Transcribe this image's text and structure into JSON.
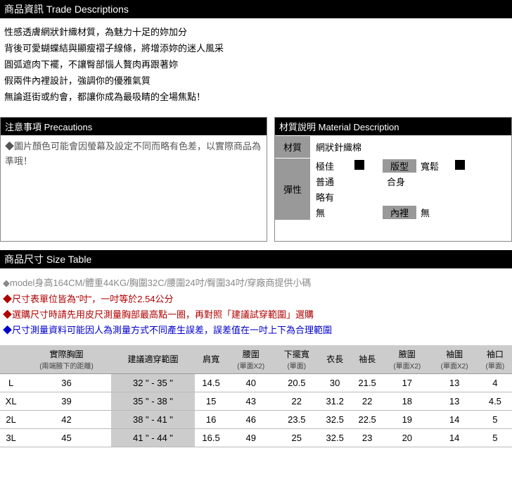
{
  "trade": {
    "header": "商品資訊 Trade Descriptions",
    "lines": [
      "性感透膚網狀針織材質，為魅力十足的妳加分",
      "背後可愛蝴蝶結與顯瘦褶子線條，將增添妳的迷人風采",
      "圓弧遮肉下襬，不讓臀部惱人贅肉再跟著妳",
      "假兩件內裡設計，強調你的優雅氣質",
      "無論逛街或約會，都讓你成為最吸睛的全場焦點！"
    ]
  },
  "precautions": {
    "header": "注意事項 Precautions",
    "body": "◆圖片顏色可能會因螢幕及設定不同而略有色差，以實際商品為準哦！"
  },
  "material": {
    "header": "材質說明 Material Description",
    "label_material": "材質",
    "value_material": "網狀針織棉",
    "label_elastic": "彈性",
    "elastic_options": [
      "極佳",
      "普通",
      "略有",
      "無"
    ],
    "elastic_selected_index": 0,
    "label_fit": "版型",
    "fit_options": [
      "寬鬆",
      "合身"
    ],
    "fit_selected_index": 0,
    "label_lining": "內裡",
    "lining_value": "無"
  },
  "size": {
    "header": "商品尺寸 Size Table",
    "notes": [
      {
        "cls": "note-gray",
        "text": "◆model身高164CM/體重44KG/胸圍32C/腰圍24吋/臀圍34吋/穿廠商提供小碼"
      },
      {
        "cls": "note-red",
        "text": "◆尺寸表單位皆為\"吋\"，一吋等於2.54公分"
      },
      {
        "cls": "note-red",
        "text": "◆選購尺寸時請先用皮尺測量胸部最高點一圈，再對照「建議試穿範圍」選購"
      },
      {
        "cls": "note-blue",
        "text": "◆尺寸測量資料可能因人為測量方式不同產生誤差，誤差值在一吋上下為合理範圍"
      }
    ],
    "columns": [
      {
        "main": "",
        "sub": ""
      },
      {
        "main": "實際胸圍",
        "sub": "(兩端腋下的距離)"
      },
      {
        "main": "建議適穿範圍",
        "sub": ""
      },
      {
        "main": "肩寬",
        "sub": ""
      },
      {
        "main": "腰圍",
        "sub": "(單面X2)"
      },
      {
        "main": "下擺寬",
        "sub": "(單面)"
      },
      {
        "main": "衣長",
        "sub": ""
      },
      {
        "main": "袖長",
        "sub": ""
      },
      {
        "main": "腋圍",
        "sub": "(單面X2)"
      },
      {
        "main": "袖圍",
        "sub": "(單面X2)"
      },
      {
        "main": "袖口",
        "sub": "(單面)"
      }
    ],
    "rows": [
      {
        "label": "L",
        "bust": "36",
        "rec": "32 \" - 35 \"",
        "shoulder": "14.5",
        "waist": "40",
        "hem": "20.5",
        "length": "30",
        "sleeve": "21.5",
        "arm": "17",
        "scirc": "13",
        "cuff": "4"
      },
      {
        "label": "XL",
        "bust": "39",
        "rec": "35 \" - 38 \"",
        "shoulder": "15",
        "waist": "43",
        "hem": "22",
        "length": "31.2",
        "sleeve": "22",
        "arm": "18",
        "scirc": "13",
        "cuff": "4.5"
      },
      {
        "label": "2L",
        "bust": "42",
        "rec": "38 \" - 41 \"",
        "shoulder": "16",
        "waist": "46",
        "hem": "23.5",
        "length": "32.5",
        "sleeve": "22.5",
        "arm": "19",
        "scirc": "14",
        "cuff": "5"
      },
      {
        "label": "3L",
        "bust": "45",
        "rec": "41 \" - 44 \"",
        "shoulder": "16.5",
        "waist": "49",
        "hem": "25",
        "length": "32.5",
        "sleeve": "23",
        "arm": "20",
        "scirc": "14",
        "cuff": "5"
      }
    ]
  }
}
